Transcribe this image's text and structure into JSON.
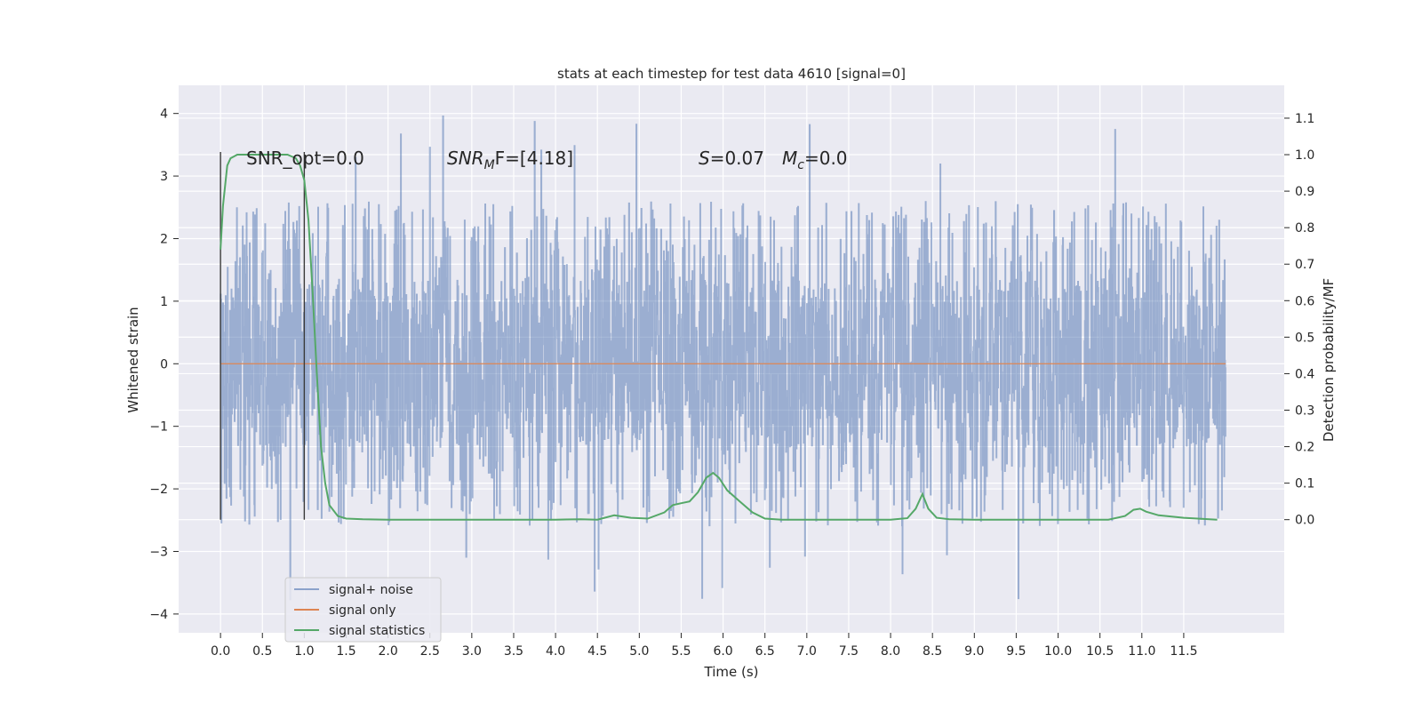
{
  "chart_data": {
    "type": "line",
    "title": "stats at each timestep for test data 4610 [signal=0]",
    "xlabel": "Time (s)",
    "ylabel": "Whitened strain",
    "ylabel_right": "Detection probability/MF",
    "xlim": [
      -0.5,
      12.7
    ],
    "ylim": [
      -4.3,
      4.45
    ],
    "ylim_right": [
      -0.31,
      1.19
    ],
    "x_ticks": [
      0.0,
      0.5,
      1.0,
      1.5,
      2.0,
      2.5,
      3.0,
      3.5,
      4.0,
      4.5,
      5.0,
      5.5,
      6.0,
      6.5,
      7.0,
      7.5,
      8.0,
      8.5,
      9.0,
      9.5,
      10.0,
      10.5,
      11.0,
      11.5
    ],
    "x_tick_labels": [
      "0.0",
      "0.5",
      "1.0",
      "1.5",
      "2.0",
      "2.5",
      "3.0",
      "3.5",
      "4.0",
      "4.5",
      "5.0",
      "5.5",
      "6.0",
      "6.5",
      "7.0",
      "7.5",
      "8.0",
      "8.5",
      "9.0",
      "9.5",
      "10.0",
      "10.5",
      "11.0",
      "11.5"
    ],
    "y_ticks": [
      -4,
      -3,
      -2,
      -1,
      0,
      1,
      2,
      3,
      4
    ],
    "y_tick_labels": [
      "−4",
      "−3",
      "−2",
      "−1",
      "0",
      "1",
      "2",
      "3",
      "4"
    ],
    "y_ticks_right": [
      0.0,
      0.1,
      0.2,
      0.3,
      0.4,
      0.5,
      0.6,
      0.7,
      0.8,
      0.9,
      1.0,
      1.1
    ],
    "y_tick_labels_right": [
      "0.0",
      "0.1",
      "0.2",
      "0.3",
      "0.4",
      "0.5",
      "0.6",
      "0.7",
      "0.8",
      "0.9",
      "1.0",
      "1.1"
    ],
    "grid": true,
    "legend_position": "lower-left",
    "annotations": {
      "snr_opt": "SNR_opt=0.0",
      "snr_mf_sym": "SNR",
      "snr_mf_sub": "M",
      "snr_mf_tail": "F=[4.18]",
      "s_sym": "S",
      "s_val": "=0.07",
      "mc_sym": "M",
      "mc_sub": "c",
      "mc_val": "=0.0"
    },
    "vertical_markers": [
      0.0,
      1.0
    ],
    "series": [
      {
        "name": "signal+ noise",
        "color": "#4c72b0",
        "kind": "noise",
        "x_range": [
          0.0,
          12.0
        ],
        "core_abs_max": 1.35,
        "typical_peak": 2.6,
        "max": 4.1,
        "min": -3.9
      },
      {
        "name": "signal only",
        "color": "#dd8452",
        "x": [
          0.0,
          12.0
        ],
        "y": [
          0.0,
          0.0
        ]
      },
      {
        "name": "signal statistics",
        "color": "#55a868",
        "axis": "right",
        "x": [
          0.0,
          0.03,
          0.08,
          0.12,
          0.2,
          0.4,
          0.6,
          0.8,
          0.9,
          0.95,
          1.0,
          1.05,
          1.1,
          1.15,
          1.2,
          1.25,
          1.3,
          1.4,
          1.5,
          1.7,
          2.0,
          3.0,
          4.0,
          4.3,
          4.5,
          4.7,
          4.9,
          5.1,
          5.3,
          5.4,
          5.5,
          5.6,
          5.7,
          5.8,
          5.88,
          5.95,
          6.05,
          6.2,
          6.35,
          6.5,
          6.7,
          7.0,
          8.0,
          8.2,
          8.3,
          8.38,
          8.45,
          8.55,
          8.7,
          9.0,
          10.0,
          10.6,
          10.8,
          10.9,
          10.98,
          11.05,
          11.2,
          11.5,
          11.9
        ],
        "y": [
          0.74,
          0.86,
          0.97,
          0.99,
          1.0,
          1.0,
          1.0,
          1.0,
          0.99,
          0.97,
          0.93,
          0.82,
          0.62,
          0.4,
          0.2,
          0.1,
          0.04,
          0.01,
          0.003,
          0.001,
          0.0,
          0.0,
          0.0,
          0.001,
          0.0,
          0.012,
          0.005,
          0.003,
          0.02,
          0.04,
          0.045,
          0.05,
          0.075,
          0.115,
          0.128,
          0.115,
          0.08,
          0.05,
          0.02,
          0.003,
          0.0,
          0.0,
          0.0,
          0.004,
          0.03,
          0.07,
          0.03,
          0.005,
          0.001,
          0.0,
          0.0,
          0.0,
          0.01,
          0.027,
          0.03,
          0.022,
          0.012,
          0.005,
          0.0
        ]
      }
    ]
  }
}
